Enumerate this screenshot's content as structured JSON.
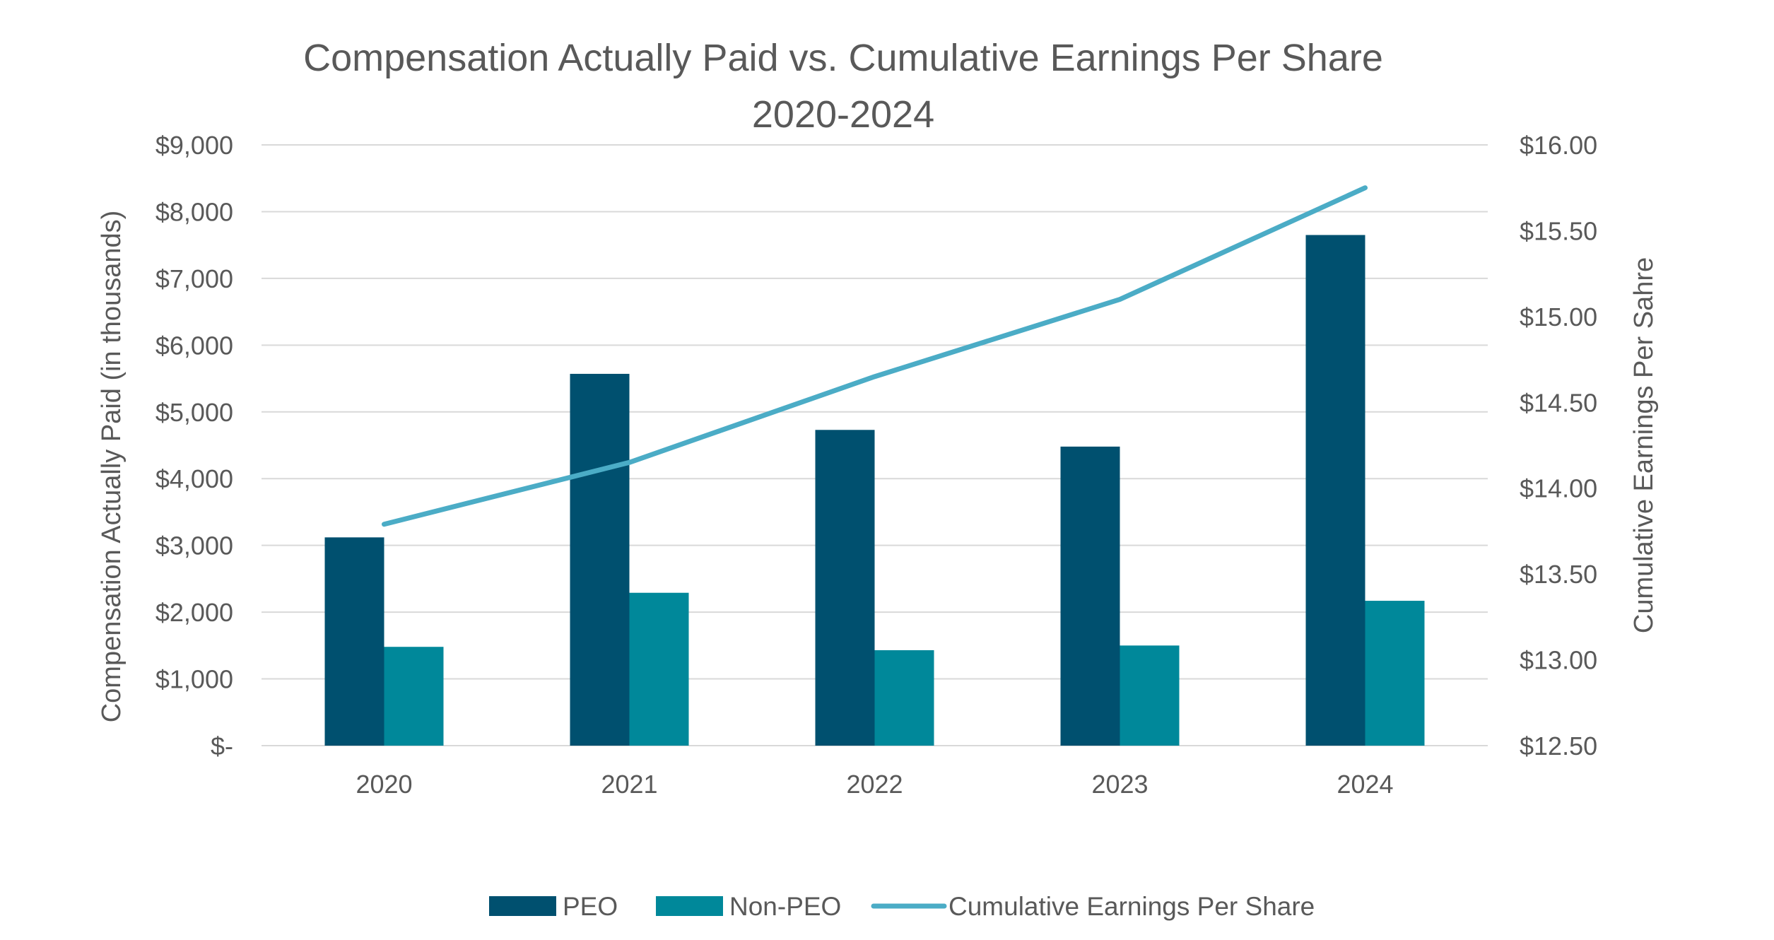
{
  "chart_data": {
    "type": "bar",
    "title": "Compensation Actually Paid vs. Cumulative Earnings Per Share",
    "subtitle": "2020-2024",
    "categories": [
      "2020",
      "2021",
      "2022",
      "2023",
      "2024"
    ],
    "series": [
      {
        "name": "PEO",
        "type": "bar",
        "axis": "left",
        "color": "#00506F",
        "values": [
          3120,
          5570,
          4730,
          4480,
          7650
        ]
      },
      {
        "name": "Non-PEO",
        "type": "bar",
        "axis": "left",
        "color": "#00889A",
        "values": [
          1480,
          2290,
          1430,
          1500,
          2170
        ]
      },
      {
        "name": "Cumulative Earnings Per Share",
        "type": "line",
        "axis": "right",
        "color": "#4BACC6",
        "values": [
          13.79,
          14.15,
          14.65,
          15.1,
          15.75
        ]
      }
    ],
    "ylabel": "Compensation Actually Paid (in thousands)",
    "ylim": [
      0,
      9000
    ],
    "yticks": [
      0,
      1000,
      2000,
      3000,
      4000,
      5000,
      6000,
      7000,
      8000,
      9000
    ],
    "ytick_labels": [
      "$-",
      "$1,000",
      "$2,000",
      "$3,000",
      "$4,000",
      "$5,000",
      "$6,000",
      "$7,000",
      "$8,000",
      "$9,000"
    ],
    "y2label": "Cumulative Earnings Per Sahre",
    "y2lim": [
      12.5,
      16.0
    ],
    "y2ticks": [
      12.5,
      13.0,
      13.5,
      14.0,
      14.5,
      15.0,
      15.5,
      16.0
    ],
    "y2tick_labels": [
      "$12.50",
      "$13.00",
      "$13.50",
      "$14.00",
      "$14.50",
      "$15.00",
      "$15.50",
      "$16.00"
    ],
    "grid": true,
    "legend": "bottom-center",
    "gridline_color": "#D9D9D9"
  }
}
